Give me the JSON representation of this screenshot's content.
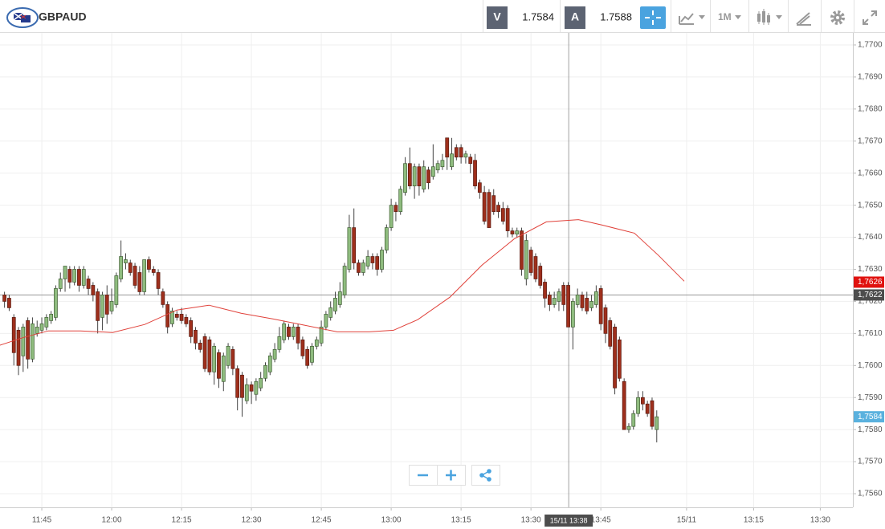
{
  "header": {
    "symbol": "GBPAUD",
    "sell_label": "V",
    "sell": "1.7584",
    "buy_label": "A",
    "buy": "1.7588",
    "timeframe": "1M"
  },
  "chart_data": {
    "type": "candlestick",
    "xlim": [
      696.03,
      879.1
    ],
    "ylim": [
      1.755575,
      1.770375
    ],
    "xticks": [
      {
        "value": 705,
        "label": "11:45"
      },
      {
        "value": 720,
        "label": "12:00"
      },
      {
        "value": 735,
        "label": "12:15"
      },
      {
        "value": 750,
        "label": "12:30"
      },
      {
        "value": 765,
        "label": "12:45"
      },
      {
        "value": 780,
        "label": "13:00"
      },
      {
        "value": 795,
        "label": "13:15"
      },
      {
        "value": 810,
        "label": "13:30"
      },
      {
        "value": 825,
        "label": "13:45"
      },
      {
        "value": 843.4,
        "label": "15/11"
      },
      {
        "value": 857.8,
        "label": "13:15"
      },
      {
        "value": 872.1,
        "label": "13:30"
      }
    ],
    "yticks": [
      {
        "value": 1.77,
        "label": "1,7700"
      },
      {
        "value": 1.769,
        "label": "1,7690"
      },
      {
        "value": 1.768,
        "label": "1,7680"
      },
      {
        "value": 1.767,
        "label": "1,7670"
      },
      {
        "value": 1.766,
        "label": "1,7660"
      },
      {
        "value": 1.765,
        "label": "1,7650"
      },
      {
        "value": 1.764,
        "label": "1,7640"
      },
      {
        "value": 1.763,
        "label": "1,7630"
      },
      {
        "value": 1.762,
        "label": "1,7620"
      },
      {
        "value": 1.761,
        "label": "1,7610"
      },
      {
        "value": 1.76,
        "label": "1,7600"
      },
      {
        "value": 1.759,
        "label": "1,7590"
      },
      {
        "value": 1.758,
        "label": "1,7580"
      },
      {
        "value": 1.757,
        "label": "1,7570"
      },
      {
        "value": 1.756,
        "label": "1,7560"
      }
    ],
    "grid": true,
    "up_color": "#8fbc7f",
    "down_color": "#9e2f1c",
    "x": [
      697,
      698,
      699,
      700,
      701,
      702,
      703,
      704,
      705,
      706,
      707,
      708,
      709,
      710,
      711,
      712,
      713,
      714,
      715,
      716,
      717,
      718,
      719,
      720,
      721,
      722,
      723,
      724,
      725,
      726,
      727,
      728,
      729,
      730,
      731,
      732,
      733,
      734,
      735,
      736,
      737,
      738,
      739,
      740,
      741,
      742,
      743,
      744,
      745,
      746,
      747,
      748,
      749,
      750,
      751,
      752,
      753,
      754,
      755,
      756,
      757,
      758,
      759,
      760,
      761,
      762,
      763,
      764,
      765,
      766,
      767,
      768,
      769,
      770,
      771,
      772,
      773,
      774,
      775,
      776,
      777,
      778,
      779,
      780,
      781,
      782,
      783,
      784,
      785,
      786,
      787,
      788,
      789,
      790,
      791,
      792,
      793,
      794,
      795,
      796,
      797,
      798,
      799,
      800,
      801,
      802,
      803,
      804,
      805,
      806,
      807,
      808,
      809,
      810,
      811,
      812,
      813,
      814,
      815,
      816,
      817,
      818,
      819,
      820,
      821,
      822,
      823,
      824,
      825,
      826,
      827,
      828,
      829,
      830,
      831,
      832,
      833,
      834,
      835,
      836,
      837
    ],
    "ohlc": [
      [
        1.7622,
        1.7623,
        1.7618,
        1.762
      ],
      [
        1.7621,
        1.7622,
        1.7617,
        1.7618
      ],
      [
        1.7615,
        1.7616,
        1.76,
        1.7604
      ],
      [
        1.7611,
        1.7612,
        1.7597,
        1.76
      ],
      [
        1.7603,
        1.7613,
        1.7598,
        1.7612
      ],
      [
        1.7614,
        1.7615,
        1.7599,
        1.7602
      ],
      [
        1.7602,
        1.7615,
        1.7601,
        1.7613
      ],
      [
        1.761,
        1.7614,
        1.7609,
        1.7612
      ],
      [
        1.7611,
        1.7615,
        1.761,
        1.7613
      ],
      [
        1.7612,
        1.7616,
        1.7611,
        1.7615
      ],
      [
        1.7614,
        1.7617,
        1.7613,
        1.7616
      ],
      [
        1.7615,
        1.7625,
        1.7614,
        1.7624
      ],
      [
        1.7624,
        1.7629,
        1.7623,
        1.7627
      ],
      [
        1.7627,
        1.7631,
        1.7623,
        1.7631
      ],
      [
        1.763,
        1.7631,
        1.7624,
        1.7626
      ],
      [
        1.7626,
        1.7631,
        1.7625,
        1.763
      ],
      [
        1.763,
        1.7631,
        1.7623,
        1.7625
      ],
      [
        1.7625,
        1.7631,
        1.7624,
        1.763
      ],
      [
        1.7627,
        1.7628,
        1.7622,
        1.7624
      ],
      [
        1.7625,
        1.7626,
        1.762,
        1.7622
      ],
      [
        1.7623,
        1.7624,
        1.761,
        1.7614
      ],
      [
        1.7615,
        1.7623,
        1.7611,
        1.7622
      ],
      [
        1.7622,
        1.7625,
        1.7613,
        1.7616
      ],
      [
        1.7617,
        1.7624,
        1.7616,
        1.762
      ],
      [
        1.7619,
        1.7629,
        1.7618,
        1.7628
      ],
      [
        1.7627,
        1.7639,
        1.7626,
        1.7634
      ],
      [
        1.7632,
        1.7635,
        1.763,
        1.7633
      ],
      [
        1.7632,
        1.7633,
        1.7628,
        1.7629
      ],
      [
        1.7631,
        1.7632,
        1.7624,
        1.7625
      ],
      [
        1.7629,
        1.7631,
        1.7622,
        1.7623
      ],
      [
        1.7623,
        1.7633,
        1.7622,
        1.7633
      ],
      [
        1.7633,
        1.7634,
        1.7629,
        1.763
      ],
      [
        1.763,
        1.7631,
        1.7628,
        1.7629
      ],
      [
        1.7629,
        1.763,
        1.7622,
        1.7624
      ],
      [
        1.7623,
        1.7624,
        1.7618,
        1.7619
      ],
      [
        1.7619,
        1.762,
        1.761,
        1.7612
      ],
      [
        1.7613,
        1.7618,
        1.7612,
        1.7617
      ],
      [
        1.7616,
        1.7617,
        1.7614,
        1.7615
      ],
      [
        1.7616,
        1.7618,
        1.7613,
        1.7614
      ],
      [
        1.7615,
        1.7616,
        1.7612,
        1.7613
      ],
      [
        1.7614,
        1.7615,
        1.7607,
        1.7609
      ],
      [
        1.7611,
        1.7612,
        1.7605,
        1.7607
      ],
      [
        1.7607,
        1.7608,
        1.7604,
        1.7605
      ],
      [
        1.7609,
        1.761,
        1.7598,
        1.7599
      ],
      [
        1.7608,
        1.7609,
        1.7597,
        1.7598
      ],
      [
        1.7598,
        1.7607,
        1.7594,
        1.7606
      ],
      [
        1.7604,
        1.7605,
        1.7593,
        1.7596
      ],
      [
        1.7595,
        1.7604,
        1.7592,
        1.7603
      ],
      [
        1.76,
        1.7607,
        1.7599,
        1.7606
      ],
      [
        1.7605,
        1.7606,
        1.7597,
        1.7599
      ],
      [
        1.7599,
        1.76,
        1.7586,
        1.759
      ],
      [
        1.7597,
        1.7598,
        1.7584,
        1.759
      ],
      [
        1.7589,
        1.7596,
        1.7588,
        1.7594
      ],
      [
        1.7594,
        1.7595,
        1.7588,
        1.7592
      ],
      [
        1.7591,
        1.7596,
        1.7589,
        1.7595
      ],
      [
        1.7593,
        1.7598,
        1.7592,
        1.7596
      ],
      [
        1.7596,
        1.7601,
        1.7595,
        1.76
      ],
      [
        1.7598,
        1.7604,
        1.7597,
        1.7603
      ],
      [
        1.7602,
        1.7607,
        1.7601,
        1.7605
      ],
      [
        1.7605,
        1.7612,
        1.7604,
        1.7609
      ],
      [
        1.7608,
        1.7614,
        1.7607,
        1.7613
      ],
      [
        1.7612,
        1.7613,
        1.7608,
        1.7609
      ],
      [
        1.7609,
        1.7613,
        1.7608,
        1.7612
      ],
      [
        1.7612,
        1.7613,
        1.7605,
        1.7607
      ],
      [
        1.7608,
        1.7609,
        1.7602,
        1.7603
      ],
      [
        1.7605,
        1.7606,
        1.7599,
        1.76
      ],
      [
        1.7601,
        1.7607,
        1.76,
        1.7606
      ],
      [
        1.7606,
        1.7609,
        1.7605,
        1.7608
      ],
      [
        1.7607,
        1.7614,
        1.7606,
        1.7612
      ],
      [
        1.7612,
        1.7617,
        1.7611,
        1.7616
      ],
      [
        1.7615,
        1.762,
        1.7614,
        1.7618
      ],
      [
        1.7617,
        1.7623,
        1.7616,
        1.7621
      ],
      [
        1.7619,
        1.7626,
        1.7618,
        1.7623
      ],
      [
        1.7622,
        1.7632,
        1.7621,
        1.7631
      ],
      [
        1.763,
        1.7647,
        1.7629,
        1.7643
      ],
      [
        1.7643,
        1.7649,
        1.763,
        1.7632
      ],
      [
        1.7632,
        1.7633,
        1.7628,
        1.7629
      ],
      [
        1.7629,
        1.7633,
        1.7628,
        1.7632
      ],
      [
        1.7631,
        1.7636,
        1.763,
        1.7634
      ],
      [
        1.7634,
        1.7635,
        1.763,
        1.7632
      ],
      [
        1.7634,
        1.7635,
        1.7628,
        1.763
      ],
      [
        1.763,
        1.7637,
        1.7629,
        1.7636
      ],
      [
        1.7636,
        1.7644,
        1.7635,
        1.7643
      ],
      [
        1.7643,
        1.7652,
        1.7642,
        1.765
      ],
      [
        1.765,
        1.7651,
        1.7645,
        1.7648
      ],
      [
        1.7648,
        1.7656,
        1.7647,
        1.7655
      ],
      [
        1.7654,
        1.7665,
        1.7653,
        1.7663
      ],
      [
        1.7663,
        1.7668,
        1.7655,
        1.7656
      ],
      [
        1.7656,
        1.7663,
        1.7652,
        1.7662
      ],
      [
        1.7662,
        1.7663,
        1.7653,
        1.7656
      ],
      [
        1.7655,
        1.7664,
        1.7654,
        1.7662
      ],
      [
        1.7661,
        1.7662,
        1.7655,
        1.7657
      ],
      [
        1.7659,
        1.7669,
        1.7658,
        1.7662
      ],
      [
        1.7661,
        1.7664,
        1.766,
        1.7663
      ],
      [
        1.7662,
        1.7666,
        1.7661,
        1.7664
      ],
      [
        1.7671,
        1.7671,
        1.7661,
        1.7665
      ],
      [
        1.7662,
        1.7671,
        1.7661,
        1.7666
      ],
      [
        1.7668,
        1.7669,
        1.7664,
        1.7665
      ],
      [
        1.7668,
        1.7669,
        1.7663,
        1.7665
      ],
      [
        1.7665,
        1.7667,
        1.7663,
        1.7666
      ],
      [
        1.7665,
        1.7666,
        1.766,
        1.7663
      ],
      [
        1.7664,
        1.7666,
        1.7655,
        1.7656
      ],
      [
        1.7657,
        1.7658,
        1.7652,
        1.7654
      ],
      [
        1.7654,
        1.7656,
        1.7644,
        1.7645
      ],
      [
        1.7654,
        1.7655,
        1.7643,
        1.7643
      ],
      [
        1.7653,
        1.7655,
        1.7647,
        1.7648
      ],
      [
        1.765,
        1.7651,
        1.7646,
        1.7648
      ],
      [
        1.7649,
        1.7651,
        1.7644,
        1.7645
      ],
      [
        1.7649,
        1.765,
        1.764,
        1.7642
      ],
      [
        1.7642,
        1.7643,
        1.764,
        1.7641
      ],
      [
        1.7641,
        1.7643,
        1.764,
        1.7642
      ],
      [
        1.7642,
        1.7643,
        1.7628,
        1.763
      ],
      [
        1.7627,
        1.7641,
        1.7625,
        1.7639
      ],
      [
        1.7636,
        1.7637,
        1.7628,
        1.7629
      ],
      [
        1.7634,
        1.7635,
        1.7626,
        1.7627
      ],
      [
        1.7631,
        1.7632,
        1.7624,
        1.7625
      ],
      [
        1.7626,
        1.7627,
        1.7618,
        1.7621
      ],
      [
        1.7622,
        1.7623,
        1.7617,
        1.7619
      ],
      [
        1.7619,
        1.7623,
        1.7618,
        1.7621
      ],
      [
        1.762,
        1.7624,
        1.7617,
        1.7623
      ],
      [
        1.7625,
        1.7626,
        1.7617,
        1.7619
      ],
      [
        1.7625,
        1.7626,
        1.7612,
        1.7612
      ],
      [
        1.7612,
        1.7621,
        1.7605,
        1.762
      ],
      [
        1.7619,
        1.7624,
        1.7618,
        1.7622
      ],
      [
        1.7622,
        1.7623,
        1.7617,
        1.7618
      ],
      [
        1.7621,
        1.7623,
        1.7616,
        1.7617
      ],
      [
        1.7618,
        1.7622,
        1.7617,
        1.762
      ],
      [
        1.7619,
        1.7625,
        1.7618,
        1.7623
      ],
      [
        1.7624,
        1.7625,
        1.7611,
        1.7613
      ],
      [
        1.7618,
        1.7619,
        1.7607,
        1.761
      ],
      [
        1.7614,
        1.7615,
        1.7605,
        1.7606
      ],
      [
        1.7612,
        1.7613,
        1.7591,
        1.7593
      ],
      [
        1.7608,
        1.7609,
        1.7595,
        1.7596
      ],
      [
        1.7595,
        1.7596,
        1.758,
        1.758
      ],
      [
        1.758,
        1.7582,
        1.7579,
        1.7581
      ],
      [
        1.7581,
        1.7586,
        1.758,
        1.7585
      ],
      [
        1.7585,
        1.7592,
        1.7584,
        1.759
      ],
      [
        1.759,
        1.7592,
        1.7586,
        1.7588
      ],
      [
        1.7588,
        1.7589,
        1.7584,
        1.7585
      ],
      [
        1.7589,
        1.759,
        1.758,
        1.7581
      ],
      [
        1.758,
        1.7586,
        1.7576,
        1.7584
      ]
    ],
    "ma": {
      "color": "#e0413a",
      "x": [
        696.0,
        701.2,
        706.4,
        713.3,
        720.2,
        727.1,
        734.0,
        740.9,
        747.8,
        754.7,
        761.6,
        768.4,
        775.3,
        780.5,
        785.7,
        792.6,
        799.5,
        806.4,
        813.3,
        820.2,
        825.3,
        832.2,
        837.4,
        842.9
      ],
      "values": [
        1.76063,
        1.76088,
        1.76108,
        1.76108,
        1.76103,
        1.76128,
        1.76173,
        1.76188,
        1.76163,
        1.76145,
        1.76125,
        1.76105,
        1.76105,
        1.7611,
        1.76143,
        1.76213,
        1.76313,
        1.76395,
        1.76448,
        1.76455,
        1.76438,
        1.76413,
        1.76343,
        1.76263
      ]
    },
    "markers": [
      {
        "value": 1.7626,
        "label": "1,7626",
        "color": "#e0120f"
      },
      {
        "value": 1.7622,
        "label": "1,7622",
        "color": "#4d4d4d"
      },
      {
        "value": 1.7584,
        "label": "1,7584",
        "color": "#5ab1de"
      }
    ],
    "crosshair": {
      "x": 818.1,
      "y": 1.7622,
      "label": "15/11 13:38"
    }
  }
}
